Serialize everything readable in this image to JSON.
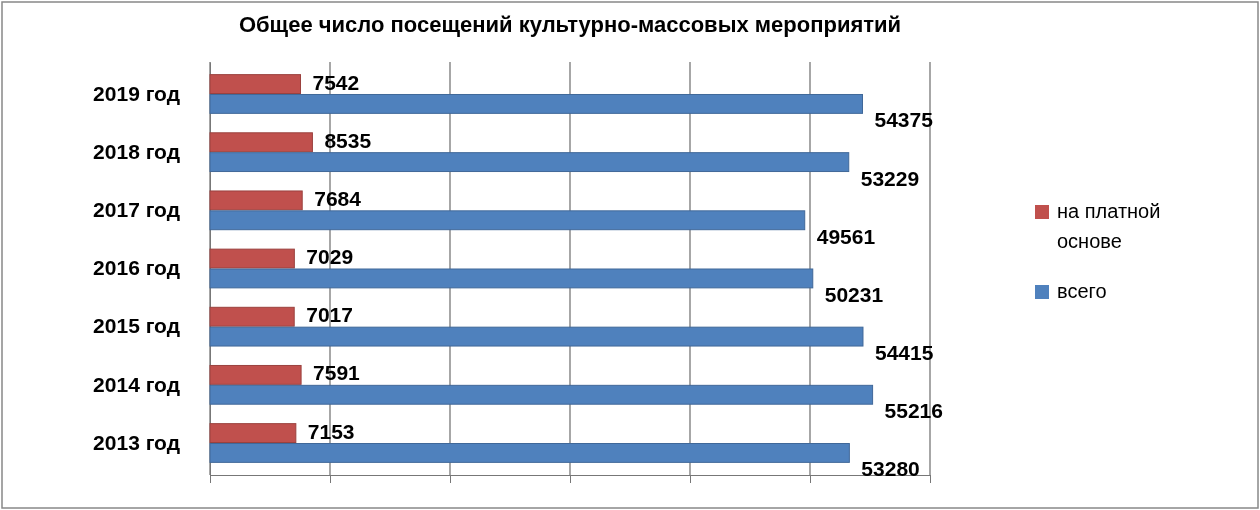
{
  "chart_data": {
    "type": "bar",
    "orientation": "horizontal",
    "title": "Общее число посещений культурно-массовых мероприятий",
    "categories": [
      "2019 год",
      "2018 год",
      "2017 год",
      "2016 год",
      "2015 год",
      "2014 год",
      "2013 год"
    ],
    "series": [
      {
        "name": "на платной основе",
        "color": "#c0504d",
        "values": [
          7542,
          8535,
          7684,
          7029,
          7017,
          7591,
          7153
        ]
      },
      {
        "name": "всего",
        "color": "#4f81bd",
        "values": [
          54375,
          53229,
          49561,
          50231,
          54415,
          55216,
          53280
        ]
      }
    ],
    "xlim": [
      0,
      60000
    ],
    "xticks": [
      {
        "value": 0,
        "label": null
      },
      {
        "value": 10000,
        "label": null
      },
      {
        "value": 20000,
        "label": null
      },
      {
        "value": 30000,
        "label": null
      },
      {
        "value": 40000,
        "label": null
      },
      {
        "value": 50000,
        "label": null
      },
      {
        "value": 60000,
        "label": null
      }
    ],
    "grid": "x",
    "legend": "right",
    "data_labels": true
  }
}
